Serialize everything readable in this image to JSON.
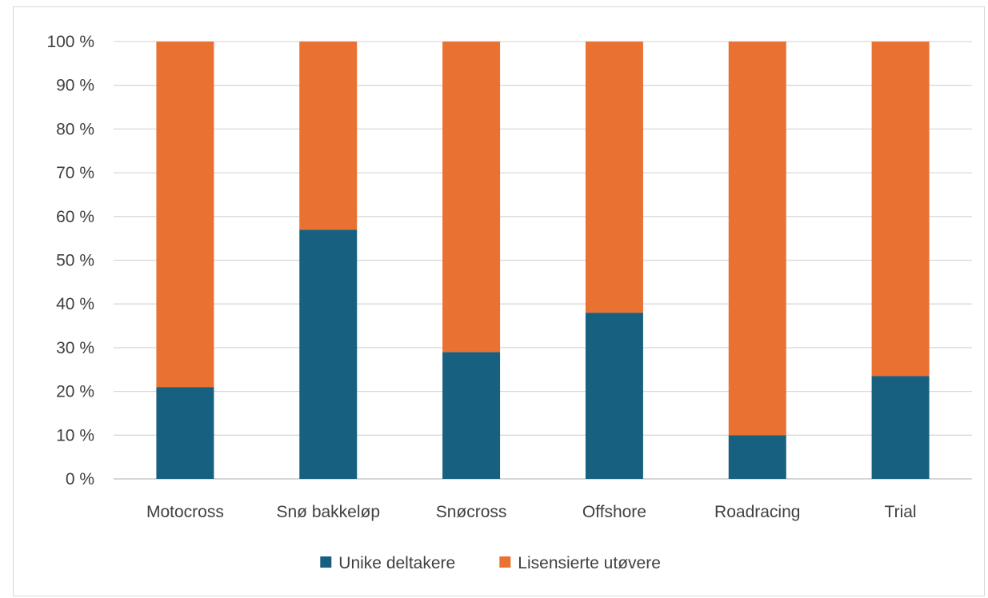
{
  "chart_data": {
    "type": "bar",
    "stacked": true,
    "percent_stacked": true,
    "categories": [
      "Motocross",
      "Snø bakkeløp",
      "Snøcross",
      "Offshore",
      "Roadracing",
      "Trial"
    ],
    "series": [
      {
        "name": "Unike deltakere",
        "color": "#17607f",
        "values": [
          21,
          57,
          29,
          38,
          10,
          23.5
        ]
      },
      {
        "name": "Lisensierte utøvere",
        "color": "#e97132",
        "values": [
          79,
          43,
          71,
          62,
          90,
          76.5
        ]
      }
    ],
    "y_ticks": [
      "0 %",
      "10 %",
      "20 %",
      "30 %",
      "40 %",
      "50 %",
      "60 %",
      "70 %",
      "80 %",
      "90 %",
      "100 %"
    ],
    "ylim": [
      0,
      100
    ],
    "grid": true,
    "legend_position": "bottom",
    "title": "",
    "xlabel": "",
    "ylabel": ""
  }
}
